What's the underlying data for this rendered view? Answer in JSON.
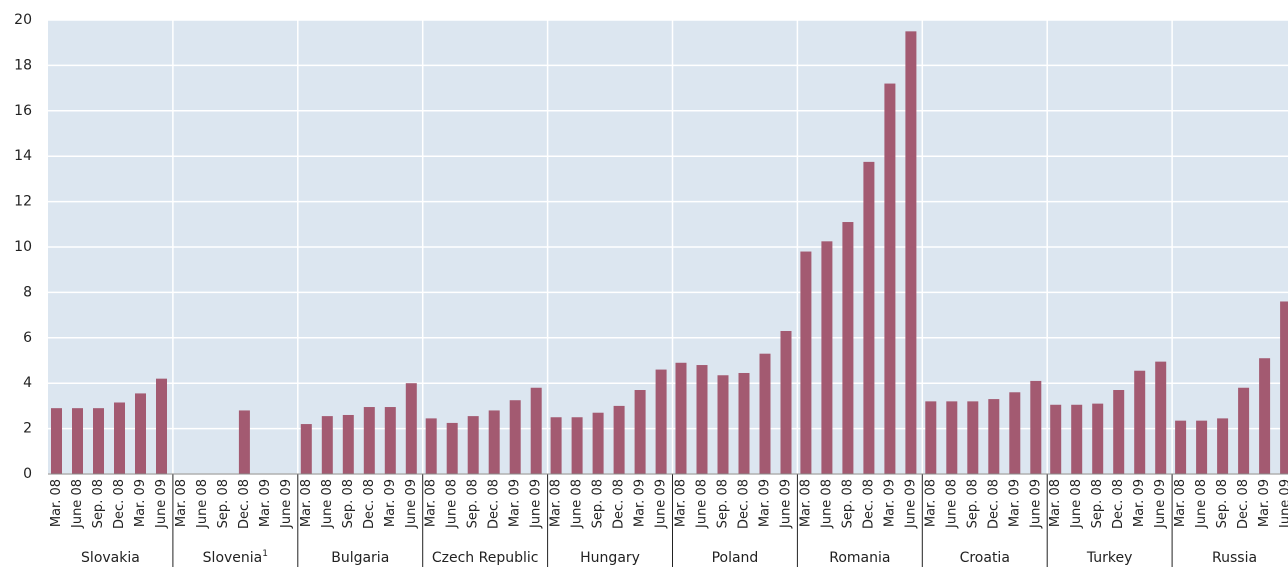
{
  "chart_data": {
    "type": "grouped-bar",
    "periods": [
      "Mar. 08",
      "June 08",
      "Sep. 08",
      "Dec. 08",
      "Mar. 09",
      "June 09"
    ],
    "groups": [
      {
        "name": "Slovakia",
        "values": [
          2.9,
          2.9,
          2.9,
          3.15,
          3.55,
          4.2
        ]
      },
      {
        "name": "Slovenia",
        "footnote": "1",
        "values": [
          null,
          null,
          null,
          2.8,
          null,
          null
        ]
      },
      {
        "name": "Bulgaria",
        "values": [
          2.2,
          2.55,
          2.6,
          2.95,
          2.95,
          4.0
        ]
      },
      {
        "name": "Czech Republic",
        "values": [
          2.45,
          2.25,
          2.55,
          2.8,
          3.25,
          3.8
        ]
      },
      {
        "name": "Hungary",
        "values": [
          2.5,
          2.5,
          2.7,
          3.0,
          3.7,
          4.6
        ]
      },
      {
        "name": "Poland",
        "values": [
          4.9,
          4.8,
          4.35,
          4.45,
          5.3,
          6.3
        ]
      },
      {
        "name": "Romania",
        "values": [
          9.8,
          10.25,
          11.1,
          13.75,
          17.2,
          19.5
        ]
      },
      {
        "name": "Croatia",
        "values": [
          3.2,
          3.2,
          3.2,
          3.3,
          3.6,
          4.1
        ]
      },
      {
        "name": "Turkey",
        "values": [
          3.05,
          3.05,
          3.1,
          3.7,
          4.55,
          4.95
        ]
      },
      {
        "name": "Russia",
        "values": [
          2.35,
          2.35,
          2.45,
          3.8,
          5.1,
          7.6
        ]
      }
    ],
    "color": "#a35a71",
    "background": "#dce6f0",
    "ylim": [
      0,
      20
    ],
    "yticks": [
      0,
      2,
      4,
      6,
      8,
      10,
      12,
      14,
      16,
      18,
      20
    ],
    "grid": true
  }
}
